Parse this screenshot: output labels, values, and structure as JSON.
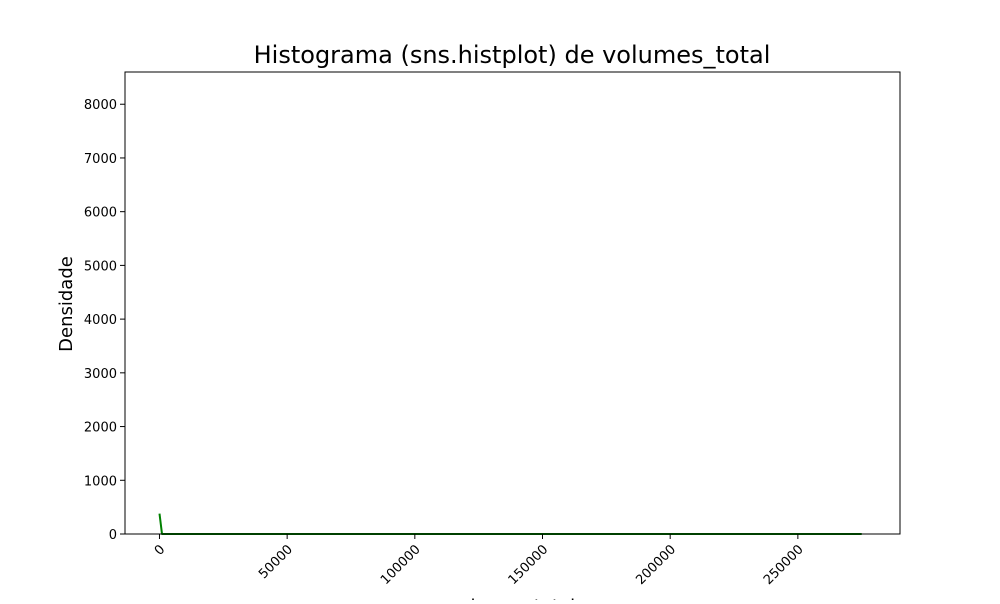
{
  "chart_data": {
    "type": "histogram",
    "title": "Histograma (sns.histplot) de volumes_total",
    "xlabel": "volumes_total",
    "ylabel": "Densidade",
    "xlim": [
      -13500,
      290000
    ],
    "ylim": [
      0,
      8600
    ],
    "xticks": [
      0,
      50000,
      100000,
      150000,
      200000,
      250000
    ],
    "xtick_labels": [
      "0",
      "50000",
      "100000",
      "150000",
      "200000",
      "250000"
    ],
    "yticks": [
      0,
      1000,
      2000,
      3000,
      4000,
      5000,
      6000,
      7000,
      8000
    ],
    "ytick_labels": [
      "0",
      "1000",
      "2000",
      "3000",
      "4000",
      "5000",
      "6000",
      "7000",
      "8000"
    ],
    "grid": false,
    "series": [
      {
        "kind": "kde",
        "color": "#008000",
        "x": [
          0,
          1000,
          2000,
          10000,
          50000,
          100000,
          150000,
          200000,
          250000,
          275000
        ],
        "y": [
          380,
          0,
          0,
          0,
          0,
          0,
          0,
          0,
          0,
          0
        ]
      }
    ]
  }
}
